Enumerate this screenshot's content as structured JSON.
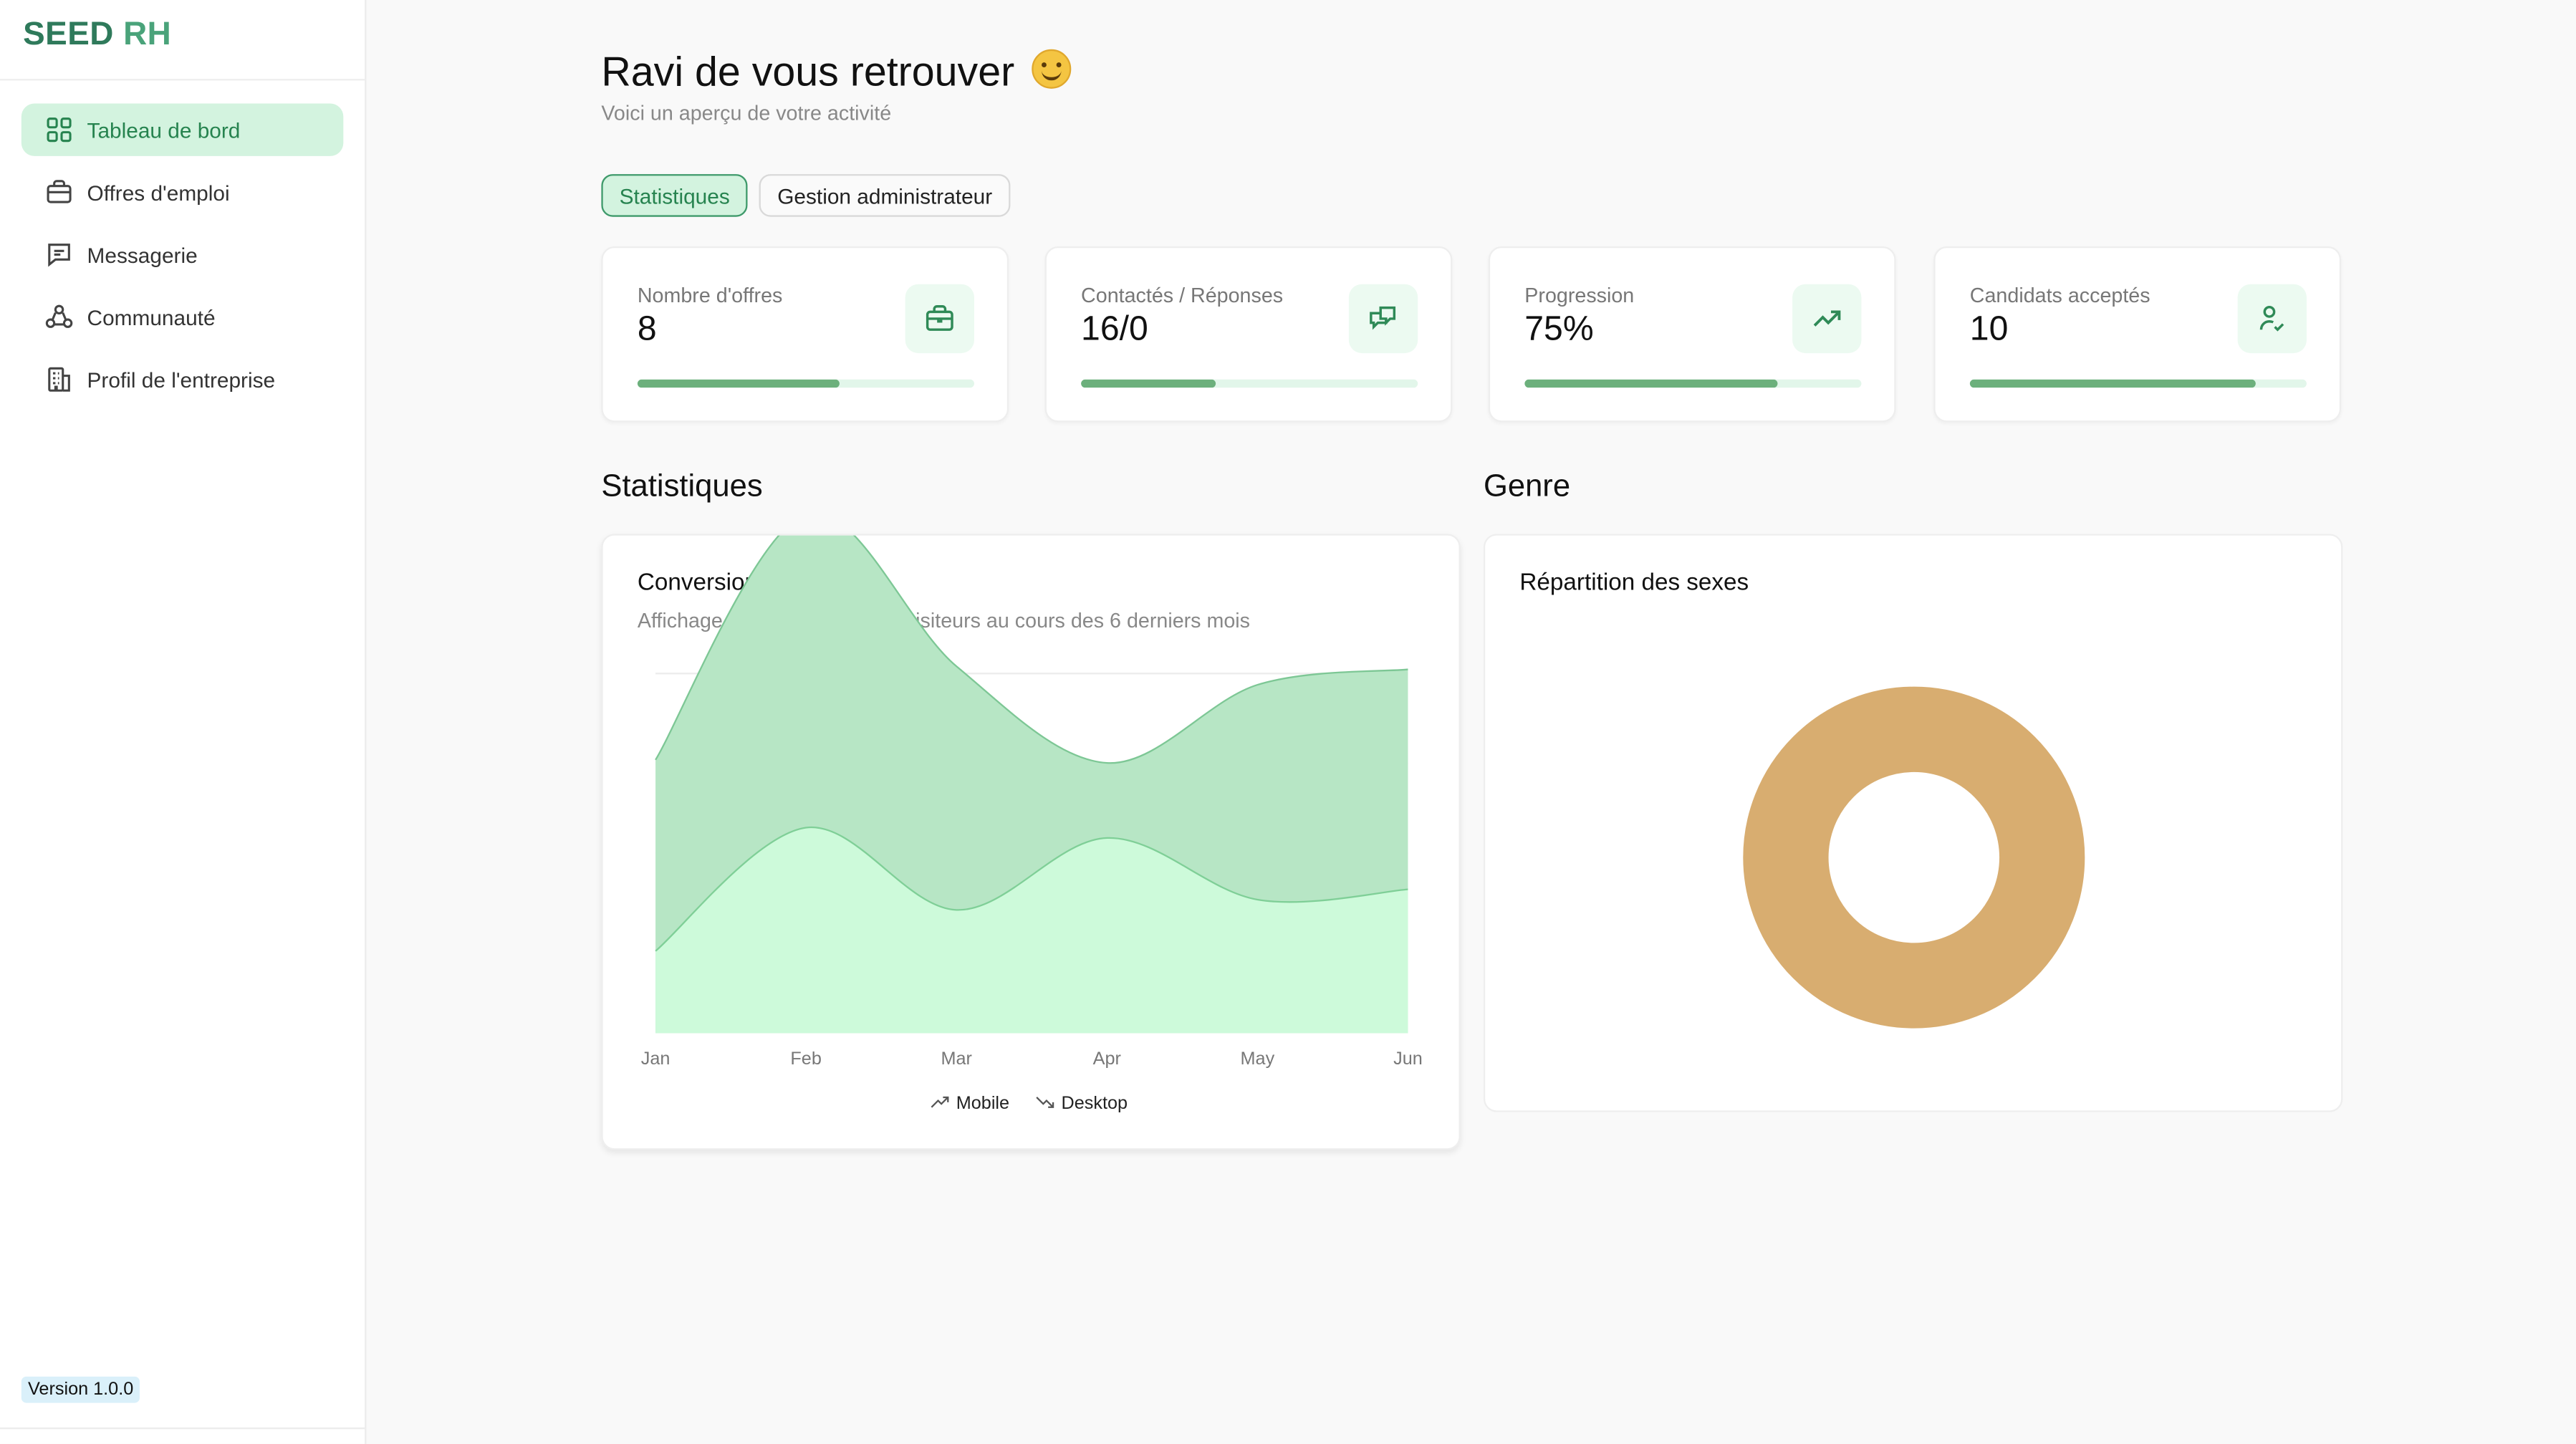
{
  "brand": {
    "part1": "SEED",
    "part2": "RH"
  },
  "sidebar": {
    "items": [
      {
        "label": "Tableau de bord",
        "icon": "grid-icon",
        "active": true
      },
      {
        "label": "Offres d'emploi",
        "icon": "briefcase-icon"
      },
      {
        "label": "Messagerie",
        "icon": "message-icon"
      },
      {
        "label": "Communauté",
        "icon": "community-icon"
      },
      {
        "label": "Profil de l'entreprise",
        "icon": "building-icon"
      }
    ],
    "version": "Version 1.0.0"
  },
  "header": {
    "title": "Ravi de vous retrouver",
    "subtitle": "Voici un aperçu de votre activité"
  },
  "tabs": [
    {
      "label": "Statistiques",
      "active": true
    },
    {
      "label": "Gestion administrateur",
      "active": false
    }
  ],
  "stats": [
    {
      "label": "Nombre d'offres",
      "value": "8",
      "progress": 0.6,
      "icon": "briefcase-icon"
    },
    {
      "label": "Contactés / Réponses",
      "value": "16/0",
      "progress": 0.4,
      "icon": "chat-bubbles-icon"
    },
    {
      "label": "Progression",
      "value": "75%",
      "progress": 0.75,
      "icon": "trending-up-icon"
    },
    {
      "label": "Candidats acceptés",
      "value": "10",
      "progress": 0.85,
      "icon": "user-check-icon"
    }
  ],
  "sections": {
    "stats_title": "Statistiques",
    "gender_title": "Genre"
  },
  "conversion": {
    "title": "Conversion",
    "description": "Affichage du nombre total de visiteurs au cours des 6 derniers mois"
  },
  "gender": {
    "title": "Répartition des sexes"
  },
  "colors": {
    "accent": "#26834f",
    "accent_light": "#d3f3df",
    "area_desktop": "#b7e6c5",
    "area_mobile": "#cdfada",
    "donut": "#d8ad70"
  },
  "chart_data": [
    {
      "type": "area",
      "categories": [
        "Jan",
        "Feb",
        "Mar",
        "Apr",
        "May",
        "Jun"
      ],
      "ylim": [
        0,
        350
      ],
      "grid": true,
      "legend_position": "bottom-center",
      "series": [
        {
          "name": "Mobile",
          "values": [
            80,
            200,
            120,
            190,
            130,
            140
          ],
          "color": "#cdfada",
          "stroke": "#7fcf97"
        },
        {
          "name": "Desktop",
          "values": [
            186,
            305,
            237,
            73,
            209,
            214
          ],
          "color": "#b7e6c5",
          "stroke": "#7dc795"
        }
      ]
    },
    {
      "type": "pie",
      "series": [
        {
          "values": [
            1
          ]
        }
      ],
      "colors": [
        "#d8ad70"
      ],
      "donut": true
    }
  ]
}
